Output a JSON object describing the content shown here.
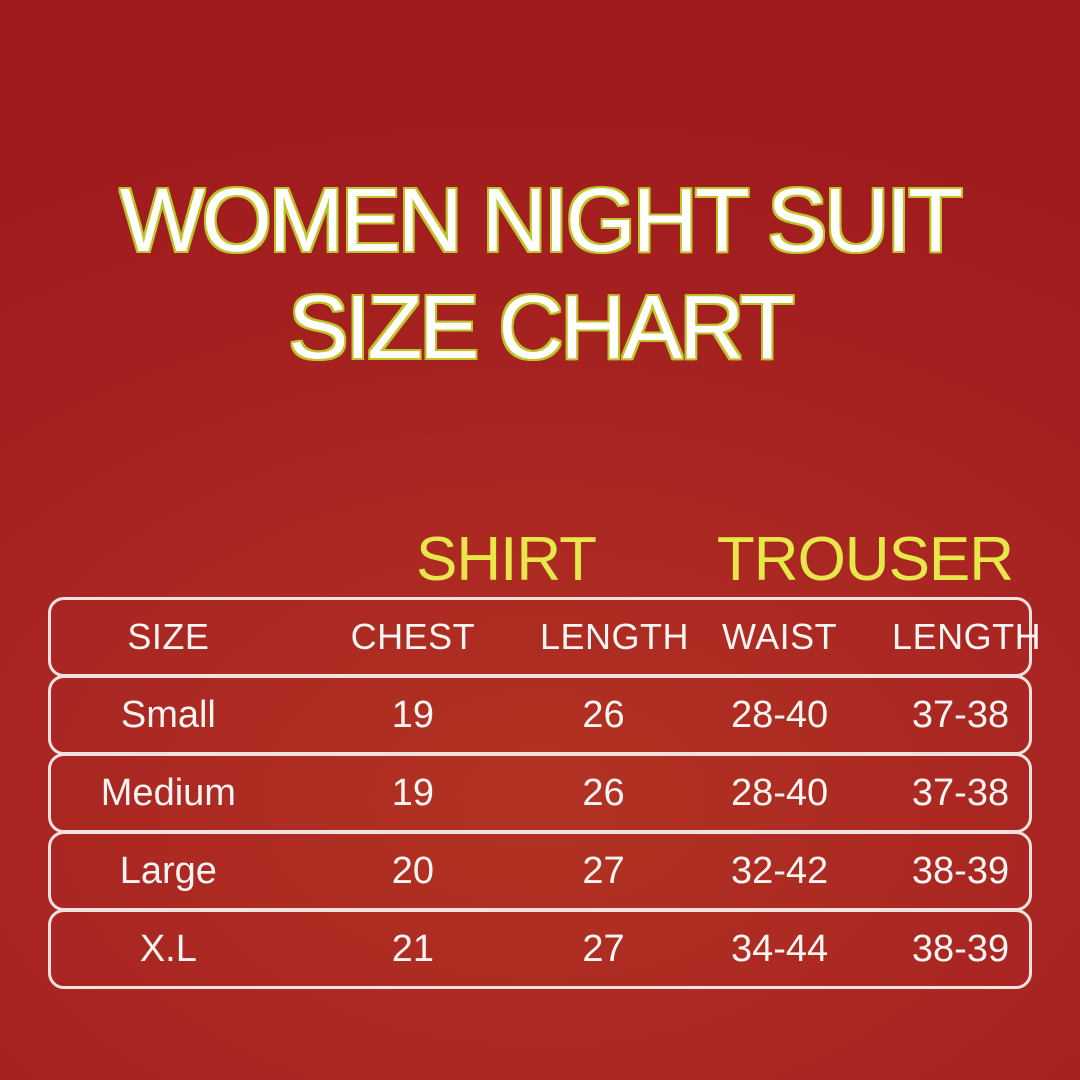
{
  "poster": {
    "title_line1": "WOMEN NIGHT SUIT",
    "title_line2": "SIZE CHART"
  },
  "chart_data": {
    "type": "table",
    "title": "WOMEN NIGHT SUIT SIZE CHART",
    "section_headers": [
      "SHIRT",
      "TROUSER"
    ],
    "column_groups": [
      {
        "label": "SHIRT",
        "columns": [
          "CHEST",
          "LENGTH"
        ]
      },
      {
        "label": "TROUSER",
        "columns": [
          "WAIST",
          "LENGTH"
        ]
      }
    ],
    "columns": [
      "SIZE",
      "CHEST",
      "LENGTH",
      "WAIST",
      "LENGTH"
    ],
    "rows": [
      [
        "Small",
        "19",
        "26",
        "28-40",
        "37-38"
      ],
      [
        "Medium",
        "19",
        "26",
        "28-40",
        "37-38"
      ],
      [
        "Large",
        "20",
        "27",
        "32-42",
        "38-39"
      ],
      [
        "X.L",
        "21",
        "27",
        "34-44",
        "38-39"
      ]
    ]
  },
  "colors": {
    "background_outer": "#9e1a1d",
    "background_mid": "#a82422",
    "background_inner": "#b23322",
    "title_fill": "#ffffff",
    "title_outline": "#bec52b",
    "section_header": "#e6e84a",
    "table_text": "#faf5f2",
    "row_border": "#f0e2de"
  }
}
